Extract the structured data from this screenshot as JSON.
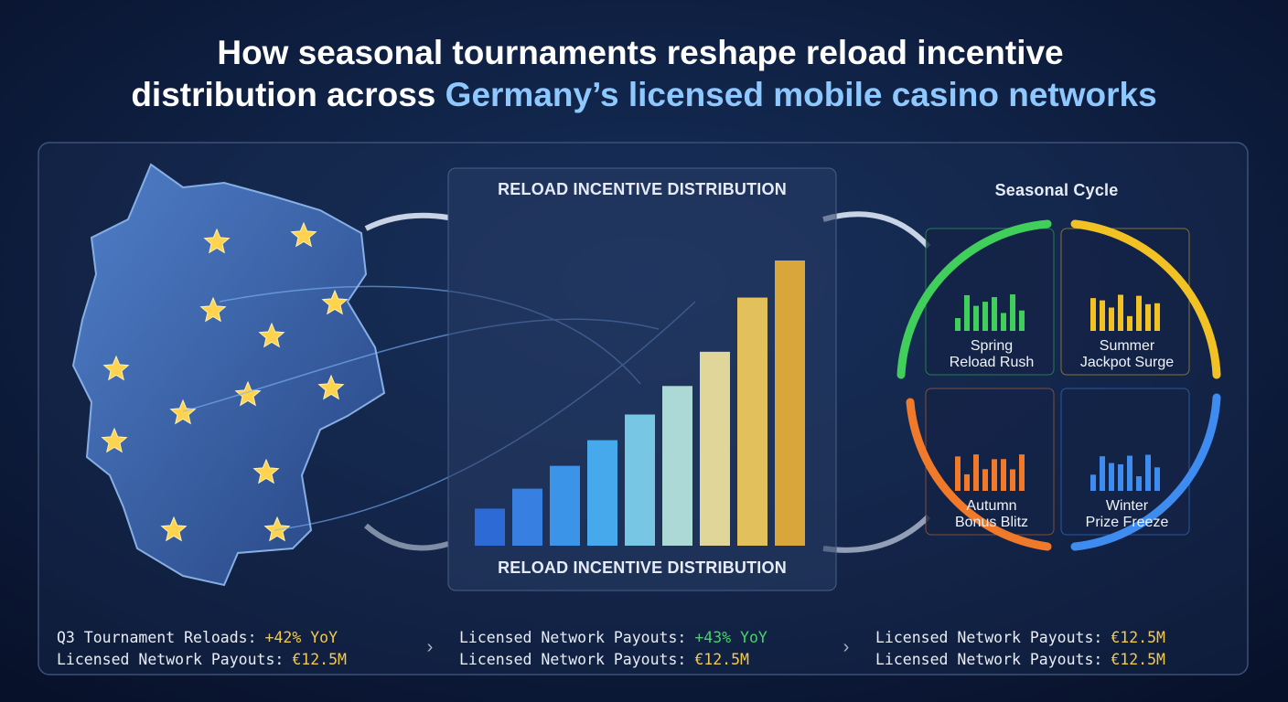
{
  "header": {
    "title_line1": "How seasonal tournaments reshape reload incentive",
    "title_line2_plain": "distribution across",
    "title_line2_highlight": "Germany’s licensed mobile casino networks"
  },
  "chart_data": {
    "type": "bar",
    "title": "RELOAD INCENTIVE DISTRIBUTION",
    "caption": "RELOAD INCENTIVE DISTRIBUTION",
    "values": [
      13,
      20,
      28,
      37,
      46,
      56,
      68,
      87,
      100
    ],
    "ylim": [
      0,
      100
    ],
    "colors": [
      "#2f6fe0",
      "#3b86ee",
      "#3f9cf5",
      "#4ab3f8",
      "#7fd3f0",
      "#b8e6e0",
      "#f1e4a0",
      "#f3cd5c",
      "#e9b03a"
    ]
  },
  "seasonal": {
    "title": "Seasonal Cycle",
    "seasons": [
      {
        "name": "Spring",
        "subtitle": "Reload Rush",
        "color": "#3fcf5a"
      },
      {
        "name": "Summer",
        "subtitle": "Jackpot Surge",
        "color": "#f2c224"
      },
      {
        "name": "Autumn",
        "subtitle": "Bonus Blitz",
        "color": "#f07a2a"
      },
      {
        "name": "Winter",
        "subtitle": "Prize Freeze",
        "color": "#3f8cf0"
      }
    ]
  },
  "stats": [
    [
      {
        "label": "Q3 Tournament Reloads:",
        "value": "+42% YoY",
        "color": "#f3c94a"
      },
      {
        "label": "Licensed Network Payouts:",
        "value": "€12.5M",
        "color": "#f3c94a"
      }
    ],
    [
      {
        "label": "Licensed Network Payouts:",
        "value": "+43% YoY",
        "color": "#46d36a"
      },
      {
        "label": "Licensed Network Payouts:",
        "value": "€12.5M",
        "color": "#f3c94a"
      }
    ],
    [
      {
        "label": "Licensed Network Payouts:",
        "value": "€12.5M",
        "color": "#f3c94a"
      },
      {
        "label": "Licensed Network Payouts:",
        "value": "€12.5M",
        "color": "#f3c94a"
      }
    ]
  ]
}
